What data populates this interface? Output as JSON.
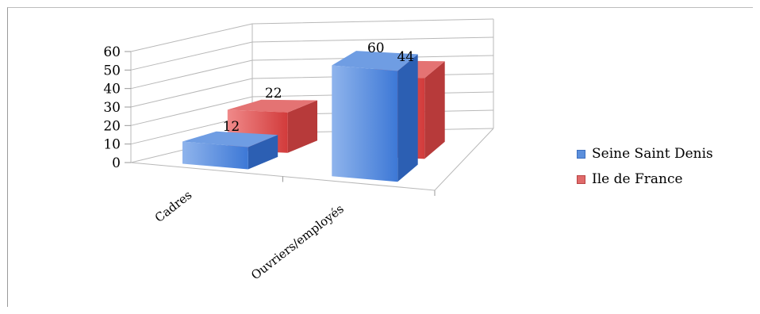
{
  "chart_data": {
    "type": "bar",
    "title": "",
    "xlabel": "",
    "ylabel": "",
    "categories": [
      "Cadres",
      "Ouvriers/employés"
    ],
    "series": [
      {
        "name": "Seine Saint Denis",
        "values": [
          12,
          60
        ],
        "color": "#4f81bd"
      },
      {
        "name": "Ile de France",
        "values": [
          22,
          44
        ],
        "color": "#c0504d"
      }
    ],
    "ylim": [
      0,
      60
    ],
    "yticks": [
      "0",
      "10",
      "20",
      "30",
      "40",
      "50",
      "60"
    ],
    "grid": true,
    "legend_position": "right",
    "three_d": true
  }
}
